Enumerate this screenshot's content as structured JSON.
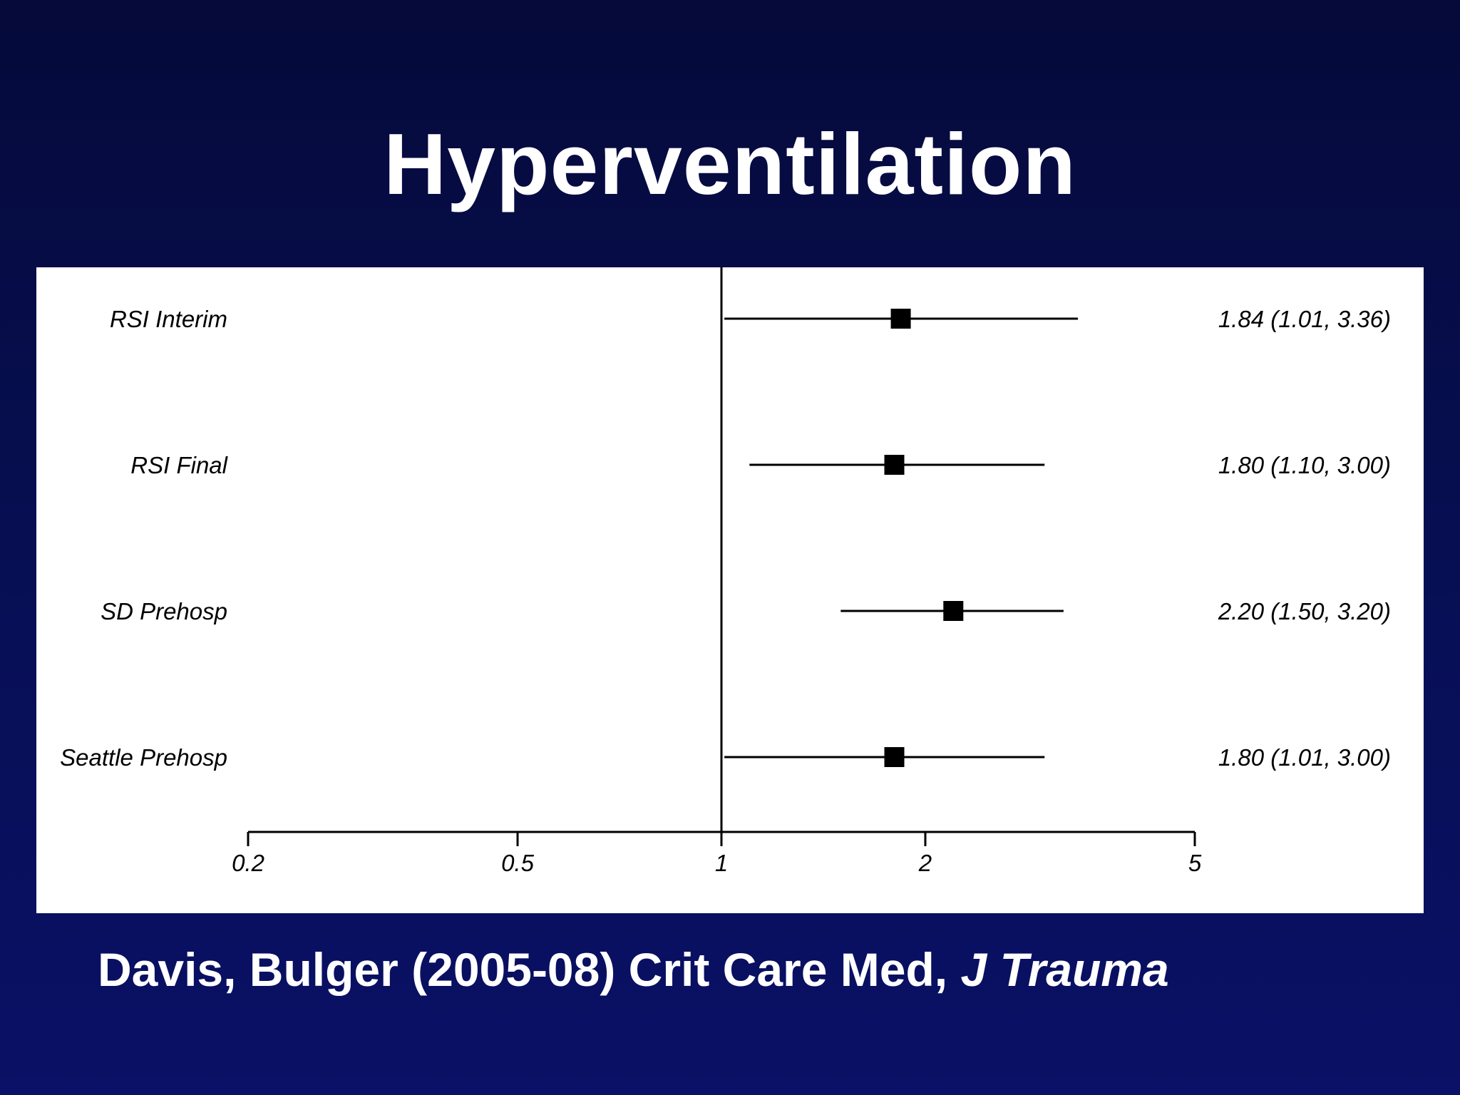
{
  "slide": {
    "title": "Hyperventilation",
    "citation_main": "Davis, Bulger (2005-08) Crit Care Med, ",
    "citation_journal": "J Trauma"
  },
  "chart_data": {
    "type": "forest",
    "x_scale": "log",
    "xlim": [
      0.2,
      5
    ],
    "x_ticks": [
      0.2,
      0.5,
      1,
      2,
      5
    ],
    "x_tick_labels": [
      "0.2",
      "0.5",
      "1",
      "2",
      "5"
    ],
    "reference_line": 1,
    "rows": [
      {
        "label": "RSI Interim",
        "estimate": 1.84,
        "lower": 1.01,
        "upper": 3.36,
        "result_text": "1.84 (1.01, 3.36)"
      },
      {
        "label": "RSI Final",
        "estimate": 1.8,
        "lower": 1.1,
        "upper": 3.0,
        "result_text": "1.80 (1.10, 3.00)"
      },
      {
        "label": "SD Prehosp",
        "estimate": 2.2,
        "lower": 1.5,
        "upper": 3.2,
        "result_text": "2.20 (1.50, 3.20)"
      },
      {
        "label": "Seattle Prehosp",
        "estimate": 1.8,
        "lower": 1.01,
        "upper": 3.0,
        "result_text": "1.80 (1.01, 3.00)"
      }
    ]
  }
}
